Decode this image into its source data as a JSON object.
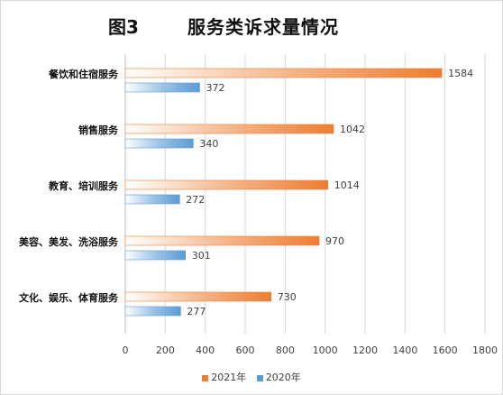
{
  "chart_data": {
    "type": "bar",
    "orientation": "horizontal",
    "figure_label": "图3",
    "title": "服务类诉求量情况",
    "categories": [
      "餐饮和住宿服务",
      "销售服务",
      "教育、培训服务",
      "美容、美发、洗浴服务",
      "文化、娱乐、体育服务"
    ],
    "series": [
      {
        "name": "2021年",
        "values": [
          1584,
          1042,
          1014,
          970,
          730
        ],
        "color": "#ED7D31"
      },
      {
        "name": "2020年",
        "values": [
          372,
          340,
          272,
          301,
          277
        ],
        "color": "#5B9BD5"
      }
    ],
    "xlim": [
      0,
      1800
    ],
    "xticks": [
      0,
      200,
      400,
      600,
      800,
      1000,
      1200,
      1400,
      1600,
      1800
    ],
    "grid": true,
    "legend_position": "bottom"
  }
}
